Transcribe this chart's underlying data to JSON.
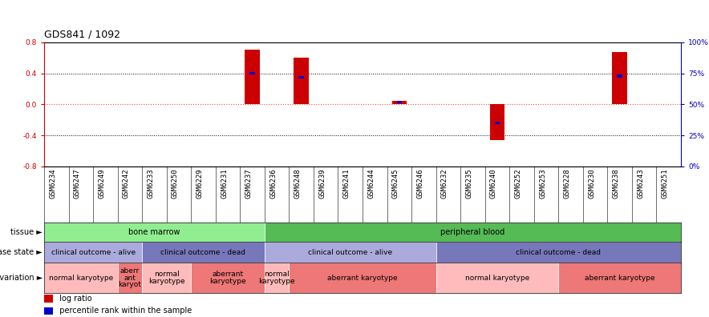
{
  "title": "GDS841 / 1092",
  "samples": [
    "GSM6234",
    "GSM6247",
    "GSM6249",
    "GSM6242",
    "GSM6233",
    "GSM6250",
    "GSM6229",
    "GSM6231",
    "GSM6237",
    "GSM6236",
    "GSM6248",
    "GSM6239",
    "GSM6241",
    "GSM6244",
    "GSM6245",
    "GSM6246",
    "GSM6232",
    "GSM6235",
    "GSM6240",
    "GSM6252",
    "GSM6253",
    "GSM6228",
    "GSM6230",
    "GSM6238",
    "GSM6243",
    "GSM6251"
  ],
  "log_ratio": [
    0,
    0,
    0,
    0,
    0,
    0,
    0,
    0,
    0.71,
    0,
    0.6,
    0,
    0,
    0,
    0.05,
    0,
    0,
    0,
    -0.46,
    0,
    0,
    0,
    0,
    0.68,
    0,
    0
  ],
  "percentile": [
    null,
    null,
    null,
    null,
    null,
    null,
    null,
    null,
    75,
    null,
    72,
    null,
    null,
    null,
    52,
    null,
    null,
    null,
    35,
    null,
    null,
    null,
    null,
    73,
    null,
    null
  ],
  "ylim": [
    -0.8,
    0.8
  ],
  "yticks_left": [
    -0.8,
    -0.4,
    0.0,
    0.4,
    0.8
  ],
  "yticks_right_pct": [
    0,
    25,
    50,
    75,
    100
  ],
  "tissue_groups": [
    {
      "label": "bone marrow",
      "start": 0,
      "end": 9,
      "color": "#90EE90"
    },
    {
      "label": "peripheral blood",
      "start": 9,
      "end": 26,
      "color": "#55BB55"
    }
  ],
  "disease_groups": [
    {
      "label": "clinical outcome - alive",
      "start": 0,
      "end": 4,
      "color": "#AAAADD"
    },
    {
      "label": "clinical outcome - dead",
      "start": 4,
      "end": 9,
      "color": "#7777BB"
    },
    {
      "label": "clinical outcome - alive",
      "start": 9,
      "end": 16,
      "color": "#AAAADD"
    },
    {
      "label": "clinical outcome - dead",
      "start": 16,
      "end": 26,
      "color": "#7777BB"
    }
  ],
  "genotype_groups": [
    {
      "label": "normal karyotype",
      "start": 0,
      "end": 3,
      "color": "#FFBBBB"
    },
    {
      "label": "aberr\nant\nkaryot",
      "start": 3,
      "end": 4,
      "color": "#EE7777"
    },
    {
      "label": "normal\nkaryotype",
      "start": 4,
      "end": 6,
      "color": "#FFBBBB"
    },
    {
      "label": "aberrant\nkaryotype",
      "start": 6,
      "end": 9,
      "color": "#EE7777"
    },
    {
      "label": "normal\nkaryotype",
      "start": 9,
      "end": 10,
      "color": "#FFBBBB"
    },
    {
      "label": "aberrant karyotype",
      "start": 10,
      "end": 16,
      "color": "#EE7777"
    },
    {
      "label": "normal karyotype",
      "start": 16,
      "end": 21,
      "color": "#FFBBBB"
    },
    {
      "label": "aberrant karyotype",
      "start": 21,
      "end": 26,
      "color": "#EE7777"
    }
  ],
  "bar_color": "#CC0000",
  "dot_color": "#0000CC",
  "axis_left_color": "#CC0000",
  "axis_right_color": "#0000BB",
  "title_fontsize": 9,
  "tick_fontsize": 6.5,
  "label_fontsize": 7,
  "annotation_fontsize": 7
}
